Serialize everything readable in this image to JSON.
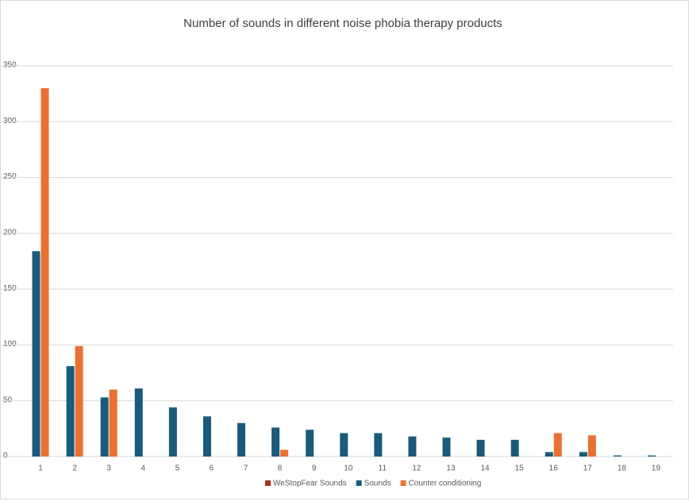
{
  "chart_data": {
    "type": "bar",
    "title": "Number of sounds in different noise phobia therapy products",
    "categories": [
      "1",
      "2",
      "3",
      "4",
      "5",
      "6",
      "7",
      "8",
      "9",
      "10",
      "11",
      "12",
      "13",
      "14",
      "15",
      "16",
      "17",
      "18",
      "19"
    ],
    "series": [
      {
        "name": "WeStopFear Sounds",
        "color": "#a9341f",
        "values": [
          null,
          null,
          null,
          null,
          null,
          null,
          null,
          null,
          null,
          null,
          null,
          null,
          null,
          null,
          null,
          null,
          null,
          null,
          null
        ]
      },
      {
        "name": "Sounds",
        "color": "#1b5a7a",
        "values": [
          184,
          81,
          53,
          61,
          44,
          36,
          30,
          26,
          24,
          21,
          21,
          18,
          17,
          15,
          15,
          4,
          4,
          1,
          1
        ]
      },
      {
        "name": "Counter conditioning",
        "color": "#e97132",
        "values": [
          330,
          99,
          60,
          null,
          null,
          null,
          null,
          6,
          null,
          null,
          null,
          null,
          null,
          null,
          null,
          21,
          19,
          null,
          null
        ]
      }
    ],
    "ylim": [
      0,
      350
    ],
    "yticks": [
      0,
      50,
      100,
      150,
      200,
      250,
      300,
      350
    ],
    "grid": true,
    "legend": "bottom"
  }
}
